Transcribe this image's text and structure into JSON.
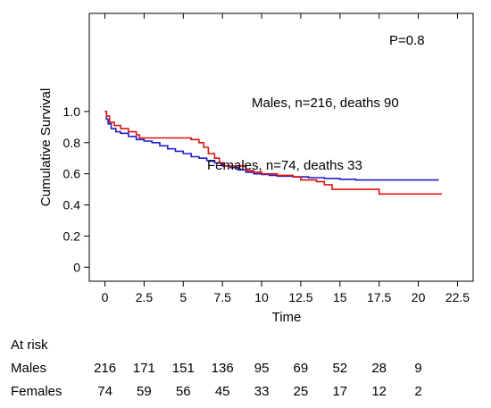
{
  "chart_data": {
    "type": "line",
    "title": "",
    "xlabel": "Time",
    "ylabel": "Cumulative Survival",
    "xlim": [
      -1,
      23.5
    ],
    "ylim": [
      -0.09,
      1.63
    ],
    "x_ticks": [
      "0",
      "2.5",
      "5",
      "7.5",
      "10",
      "12.5",
      "15",
      "17.5",
      "20",
      "22.5"
    ],
    "y_ticks": [
      "0",
      "0.2",
      "0.4",
      "0.6",
      "0.8",
      "1.0"
    ],
    "annotations": {
      "p_value": "P=0.8",
      "males_label": "Males, n=216, deaths 90",
      "females_label": "Females, n=74, deaths 33"
    },
    "series": [
      {
        "name": "Males",
        "color": "#1f1fc8",
        "points": [
          [
            0,
            1.0
          ],
          [
            0.1,
            0.95
          ],
          [
            0.2,
            0.92
          ],
          [
            0.4,
            0.89
          ],
          [
            0.7,
            0.87
          ],
          [
            1.0,
            0.86
          ],
          [
            1.5,
            0.84
          ],
          [
            2.0,
            0.82
          ],
          [
            2.5,
            0.81
          ],
          [
            3.0,
            0.8
          ],
          [
            3.5,
            0.78
          ],
          [
            4.0,
            0.76
          ],
          [
            4.5,
            0.745
          ],
          [
            5.0,
            0.73
          ],
          [
            5.5,
            0.71
          ],
          [
            6.0,
            0.7
          ],
          [
            6.5,
            0.685
          ],
          [
            7.0,
            0.67
          ],
          [
            7.5,
            0.65
          ],
          [
            8.0,
            0.64
          ],
          [
            8.5,
            0.625
          ],
          [
            9.0,
            0.61
          ],
          [
            9.5,
            0.6
          ],
          [
            10.0,
            0.595
          ],
          [
            10.5,
            0.59
          ],
          [
            11.0,
            0.585
          ],
          [
            12.0,
            0.58
          ],
          [
            13.0,
            0.575
          ],
          [
            14.0,
            0.57
          ],
          [
            15.0,
            0.565
          ],
          [
            16.0,
            0.56
          ],
          [
            17.0,
            0.56
          ],
          [
            18.0,
            0.56
          ],
          [
            19.0,
            0.56
          ],
          [
            20.0,
            0.56
          ],
          [
            21.3,
            0.56
          ]
        ]
      },
      {
        "name": "Females",
        "color": "#e01010",
        "points": [
          [
            0,
            1.0
          ],
          [
            0.1,
            0.97
          ],
          [
            0.3,
            0.93
          ],
          [
            0.6,
            0.91
          ],
          [
            1.0,
            0.89
          ],
          [
            1.5,
            0.87
          ],
          [
            2.0,
            0.85
          ],
          [
            2.2,
            0.83
          ],
          [
            3.5,
            0.83
          ],
          [
            5.0,
            0.83
          ],
          [
            5.5,
            0.82
          ],
          [
            6.0,
            0.8
          ],
          [
            6.3,
            0.77
          ],
          [
            6.6,
            0.73
          ],
          [
            7.0,
            0.7
          ],
          [
            7.3,
            0.67
          ],
          [
            7.6,
            0.65
          ],
          [
            8.5,
            0.65
          ],
          [
            9.0,
            0.62
          ],
          [
            9.5,
            0.61
          ],
          [
            10.0,
            0.6
          ],
          [
            11.0,
            0.59
          ],
          [
            12.0,
            0.58
          ],
          [
            12.5,
            0.56
          ],
          [
            13.5,
            0.55
          ],
          [
            14.0,
            0.53
          ],
          [
            14.5,
            0.5
          ],
          [
            16.0,
            0.5
          ],
          [
            17.5,
            0.47
          ],
          [
            19.0,
            0.47
          ],
          [
            21.5,
            0.47
          ]
        ]
      }
    ]
  },
  "risk_table": {
    "heading": "At risk",
    "rows": [
      {
        "label": "Males",
        "values": [
          "216",
          "171",
          "151",
          "136",
          "95",
          "69",
          "52",
          "28",
          "9"
        ]
      },
      {
        "label": "Females",
        "values": [
          "74",
          "59",
          "56",
          "45",
          "33",
          "25",
          "17",
          "12",
          "2"
        ]
      }
    ]
  }
}
